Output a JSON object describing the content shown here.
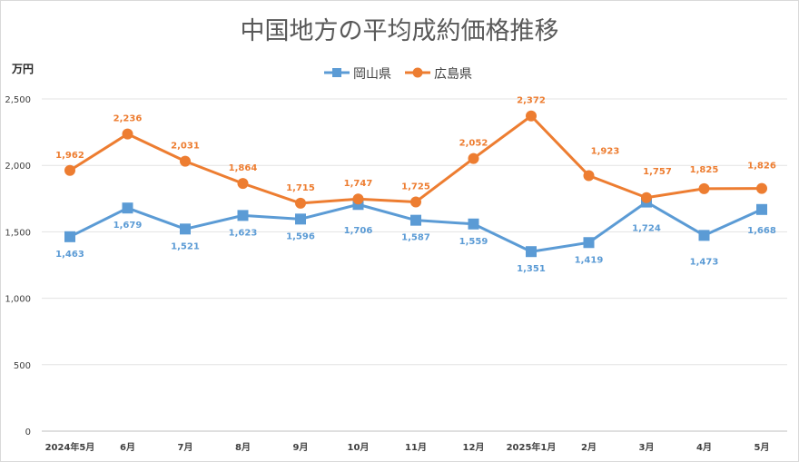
{
  "chart_data": {
    "type": "line",
    "title": "中国地方の平均成約価格推移",
    "ylabel": "万円",
    "ylim": [
      0,
      2500
    ],
    "yticks": [
      0,
      500,
      1000,
      1500,
      2000,
      2500
    ],
    "ytick_labels": [
      "0",
      "500",
      "1,000",
      "1,500",
      "2,000",
      "2,500"
    ],
    "categories": [
      "2024年5月",
      "6月",
      "7月",
      "8月",
      "9月",
      "10月",
      "11月",
      "12月",
      "2025年1月",
      "2月",
      "3月",
      "4月",
      "5月"
    ],
    "legend_position": "top",
    "grid": true,
    "series": [
      {
        "name": "岡山県",
        "color": "#5b9bd5",
        "marker": "square",
        "values": [
          1463,
          1679,
          1521,
          1623,
          1596,
          1706,
          1587,
          1559,
          1351,
          1419,
          1724,
          1473,
          1668
        ],
        "labels": [
          "1,463",
          "1,679",
          "1,521",
          "1,623",
          "1,596",
          "1,706",
          "1,587",
          "1,559",
          "1,351",
          "1,419",
          "1,724",
          "1,473",
          "1,668"
        ]
      },
      {
        "name": "広島県",
        "color": "#ed7d31",
        "marker": "circle",
        "values": [
          1962,
          2236,
          2031,
          1864,
          1715,
          1747,
          1725,
          2052,
          2372,
          1923,
          1757,
          1825,
          1826
        ],
        "labels": [
          "1,962",
          "2,236",
          "2,031",
          "1,864",
          "1,715",
          "1,747",
          "1,725",
          "2,052",
          "2,372",
          "1,923",
          "1,757",
          "1,825",
          "1,826"
        ]
      }
    ]
  }
}
